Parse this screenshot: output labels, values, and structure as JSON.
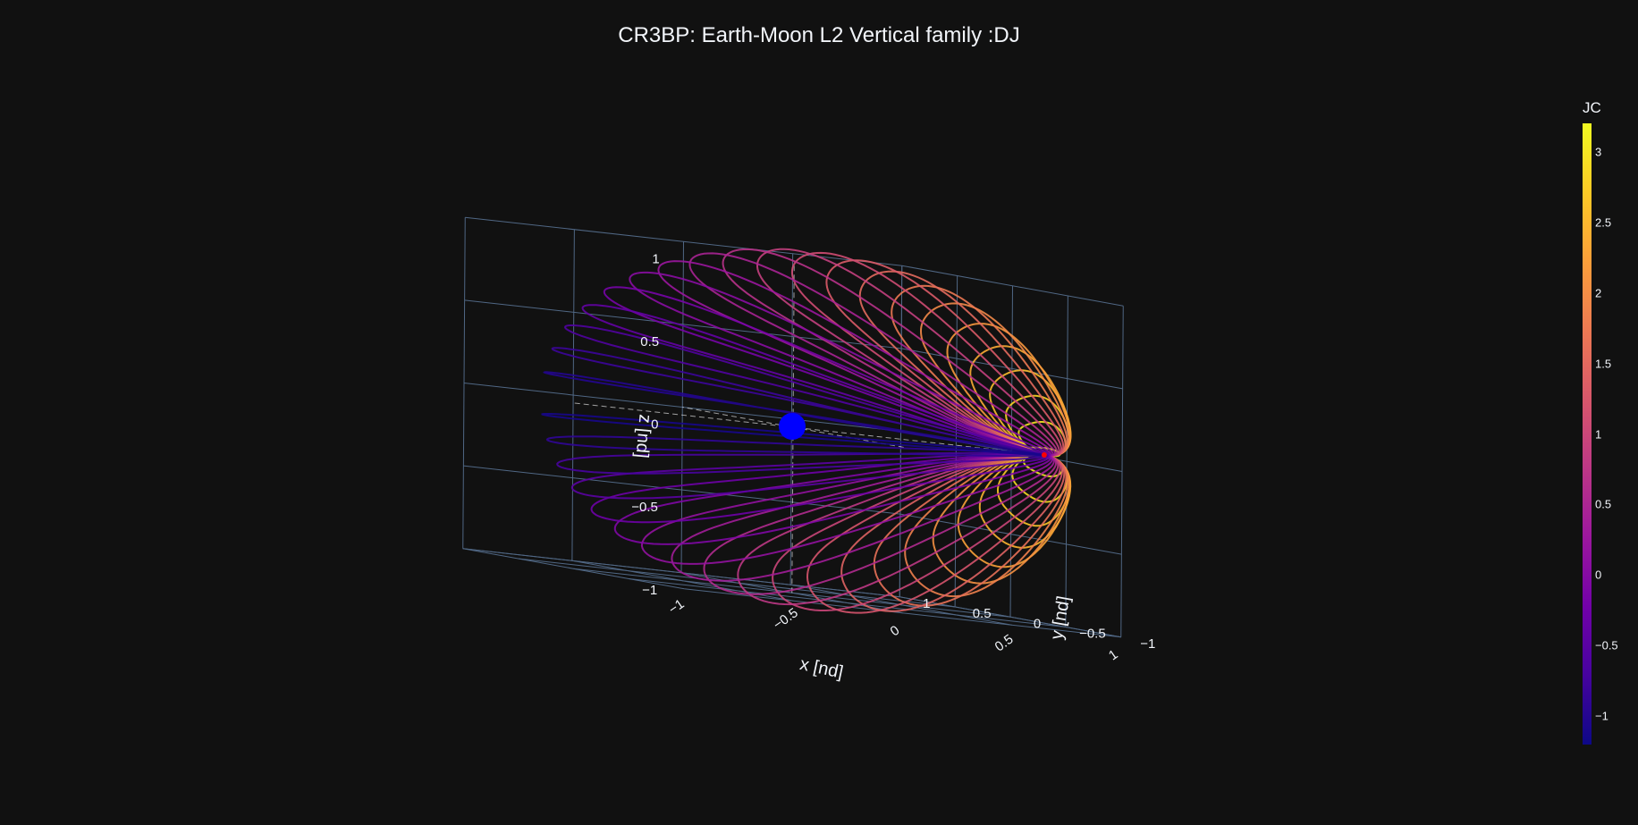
{
  "chart_data": {
    "type": "line",
    "subtype": "3d-orbit-family",
    "title": "CR3BP: Earth-Moon L2 Vertical family :DJ",
    "axes": {
      "x": {
        "label": "x [nd]",
        "range": [
          -1,
          1
        ],
        "ticks": [
          "−1",
          "−0.5",
          "0",
          "0.5",
          "1"
        ]
      },
      "y": {
        "label": "y [nd]",
        "range": [
          -1,
          1
        ],
        "ticks": [
          "−1",
          "−0.5",
          "0",
          "0.5",
          "1"
        ]
      },
      "z": {
        "label": "z [nd]",
        "range": [
          -1,
          1
        ],
        "ticks": [
          "−1",
          "−0.5",
          "0",
          "0.5",
          "1"
        ]
      }
    },
    "grid": true,
    "colorscale": "plasma",
    "colorbar": {
      "title": "JC",
      "range": [
        -1.2,
        3.2
      ],
      "ticks": [
        "3",
        "2.5",
        "2",
        "1.5",
        "1",
        "0.5",
        "0",
        "−0.5",
        "−1"
      ]
    },
    "family_members": 42,
    "primary_body": {
      "name": "Earth",
      "x": 0,
      "y": 0,
      "z": 0,
      "color": "#0000ff"
    },
    "libration_point": {
      "name": "L2",
      "x": 1.15,
      "y": 0,
      "z": 0,
      "color": "#ff0000"
    },
    "orbit_amplitude_range_nd": [
      0.05,
      1.05
    ]
  }
}
